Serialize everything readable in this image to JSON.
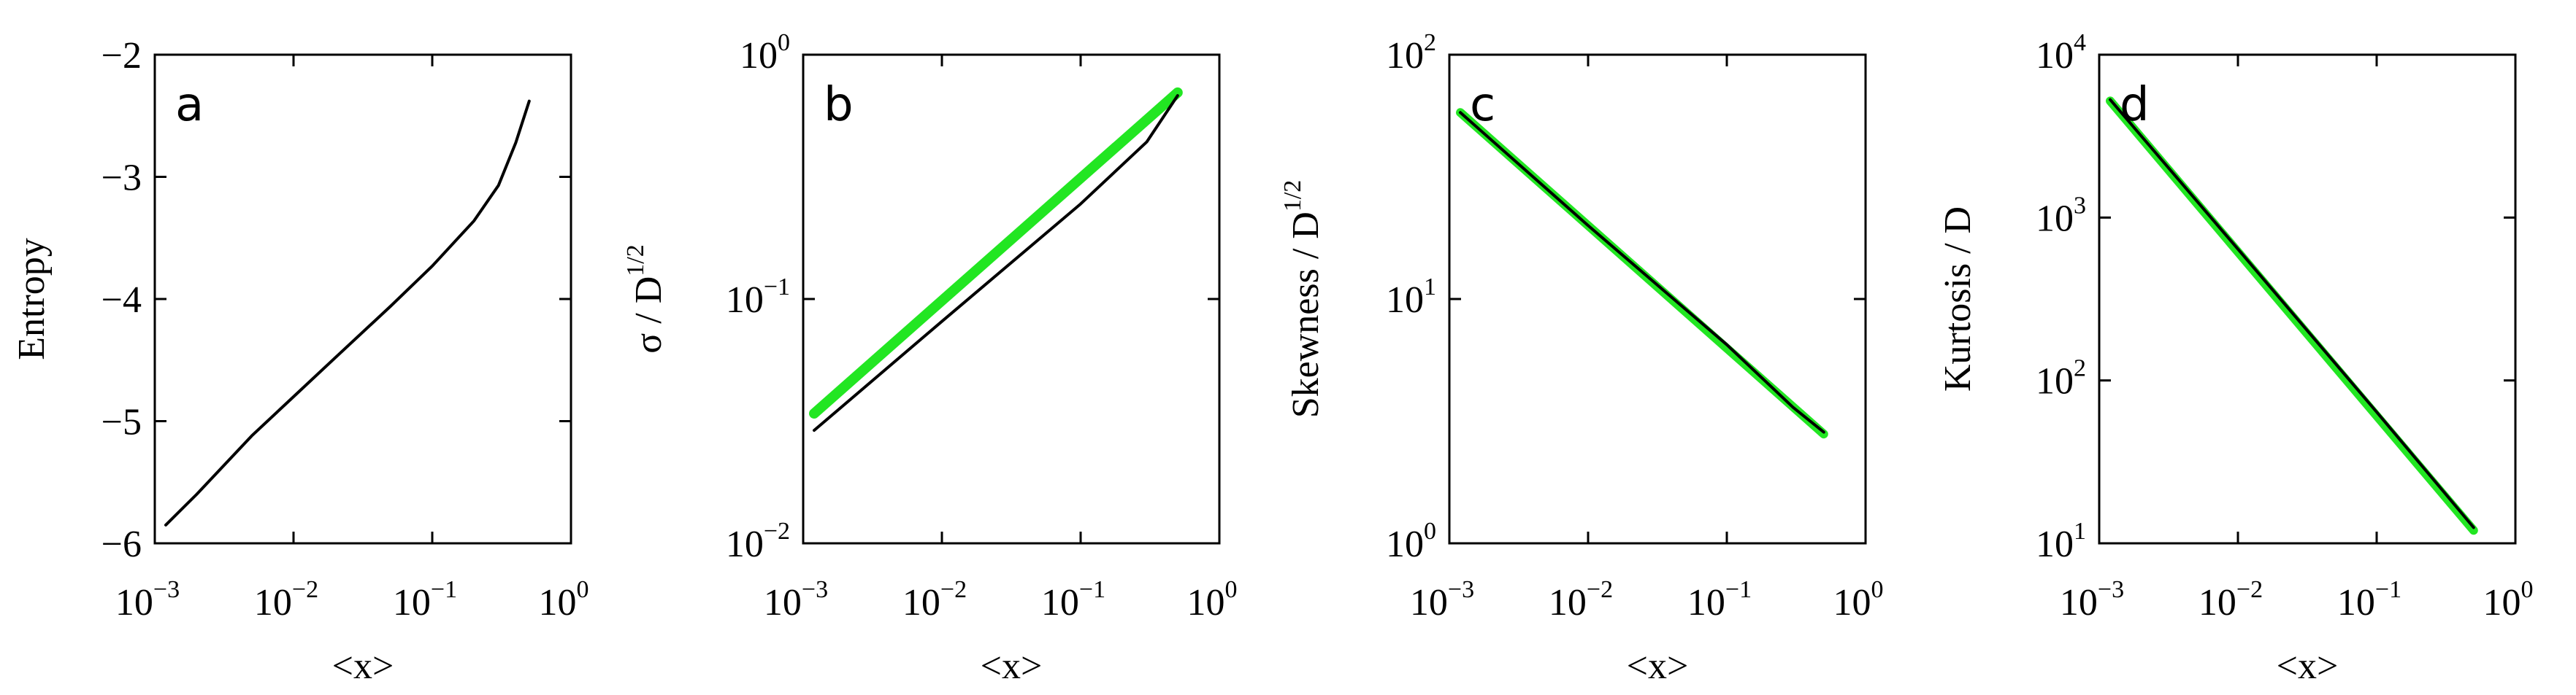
{
  "chart_data": [
    {
      "type": "line",
      "panel_label": "a",
      "xlabel": "<x>",
      "ylabel": "Entropy",
      "xscale": "log",
      "yscale": "linear",
      "xlim": [
        0.001,
        1
      ],
      "ylim": [
        -6,
        -2
      ],
      "xticks": [
        0.001,
        0.01,
        0.1,
        1
      ],
      "xtick_labels": [
        {
          "base": "10",
          "exp": "−3"
        },
        {
          "base": "10",
          "exp": "−2"
        },
        {
          "base": "10",
          "exp": "−1"
        },
        {
          "base": "10",
          "exp": "0"
        }
      ],
      "yticks": [
        -6,
        -5,
        -4,
        -3,
        -2
      ],
      "ytick_labels": [
        {
          "base": "−6",
          "exp": ""
        },
        {
          "base": "−5",
          "exp": ""
        },
        {
          "base": "−4",
          "exp": ""
        },
        {
          "base": "−3",
          "exp": ""
        },
        {
          "base": "−2",
          "exp": ""
        }
      ],
      "grid": false,
      "series": [
        {
          "color": "#000000",
          "width": 4,
          "x": [
            0.0012,
            0.002,
            0.005,
            0.01,
            0.02,
            0.05,
            0.1,
            0.2,
            0.3,
            0.4,
            0.5
          ],
          "y": [
            -5.85,
            -5.6,
            -5.12,
            -4.8,
            -4.48,
            -4.06,
            -3.73,
            -3.36,
            -3.07,
            -2.72,
            -2.38
          ]
        }
      ]
    },
    {
      "type": "line",
      "panel_label": "b",
      "xlabel": "<x>",
      "ylabel": "σ / D^1/2",
      "ylabel_parts": {
        "main": "σ / D",
        "sup": "1/2"
      },
      "xscale": "log",
      "yscale": "log",
      "xlim": [
        0.001,
        1
      ],
      "ylim": [
        0.01,
        1
      ],
      "xticks": [
        0.001,
        0.01,
        0.1,
        1
      ],
      "xtick_labels": [
        {
          "base": "10",
          "exp": "−3"
        },
        {
          "base": "10",
          "exp": "−2"
        },
        {
          "base": "10",
          "exp": "−1"
        },
        {
          "base": "10",
          "exp": "0"
        }
      ],
      "yticks": [
        0.01,
        0.1,
        1
      ],
      "ytick_labels": [
        {
          "base": "10",
          "exp": "−2"
        },
        {
          "base": "10",
          "exp": "−1"
        },
        {
          "base": "10",
          "exp": "0"
        }
      ],
      "grid": false,
      "series": [
        {
          "color": "#22e622",
          "width": 14,
          "x": [
            0.0012,
            0.5
          ],
          "y": [
            0.034,
            0.7
          ]
        },
        {
          "color": "#000000",
          "width": 4,
          "x": [
            0.0012,
            0.01,
            0.1,
            0.3,
            0.5
          ],
          "y": [
            0.029,
            0.081,
            0.245,
            0.44,
            0.68
          ]
        }
      ]
    },
    {
      "type": "line",
      "panel_label": "c",
      "xlabel": "<x>",
      "ylabel": "Skewness / D^1/2",
      "ylabel_parts": {
        "main": "Skewness / D",
        "sup": "1/2"
      },
      "xscale": "log",
      "yscale": "log",
      "xlim": [
        0.001,
        1
      ],
      "ylim": [
        1,
        100
      ],
      "xticks": [
        0.001,
        0.01,
        0.1,
        1
      ],
      "xtick_labels": [
        {
          "base": "10",
          "exp": "−3"
        },
        {
          "base": "10",
          "exp": "−2"
        },
        {
          "base": "10",
          "exp": "−1"
        },
        {
          "base": "10",
          "exp": "0"
        }
      ],
      "yticks": [
        1,
        10,
        100
      ],
      "ytick_labels": [
        {
          "base": "10",
          "exp": "0"
        },
        {
          "base": "10",
          "exp": "1"
        },
        {
          "base": "10",
          "exp": "2"
        }
      ],
      "grid": false,
      "series": [
        {
          "color": "#22e622",
          "width": 12,
          "x": [
            0.0012,
            0.5
          ],
          "y": [
            58,
            2.8
          ]
        },
        {
          "color": "#000000",
          "width": 4,
          "x": [
            0.0012,
            0.01,
            0.1,
            0.3,
            0.5
          ],
          "y": [
            58,
            20,
            6.5,
            3.6,
            2.85
          ]
        }
      ]
    },
    {
      "type": "line",
      "panel_label": "d",
      "xlabel": "<x>",
      "ylabel": "Kurtosis / D",
      "ylabel_parts": {
        "main": "Kurtosis / D",
        "sup": ""
      },
      "xscale": "log",
      "yscale": "log",
      "xlim": [
        0.001,
        1
      ],
      "ylim": [
        10,
        10000
      ],
      "xticks": [
        0.001,
        0.01,
        0.1,
        1
      ],
      "xtick_labels": [
        {
          "base": "10",
          "exp": "−3"
        },
        {
          "base": "10",
          "exp": "−2"
        },
        {
          "base": "10",
          "exp": "−1"
        },
        {
          "base": "10",
          "exp": "0"
        }
      ],
      "yticks": [
        10,
        100,
        1000,
        10000
      ],
      "ytick_labels": [
        {
          "base": "10",
          "exp": "1"
        },
        {
          "base": "10",
          "exp": "2"
        },
        {
          "base": "10",
          "exp": "3"
        },
        {
          "base": "10",
          "exp": "4"
        }
      ],
      "grid": false,
      "series": [
        {
          "color": "#22e622",
          "width": 12,
          "x": [
            0.0012,
            0.5
          ],
          "y": [
            5200,
            12
          ]
        },
        {
          "color": "#000000",
          "width": 4,
          "x": [
            0.0012,
            0.01,
            0.1,
            0.3,
            0.5
          ],
          "y": [
            5300,
            640,
            64,
            21,
            12.5
          ]
        }
      ]
    }
  ]
}
